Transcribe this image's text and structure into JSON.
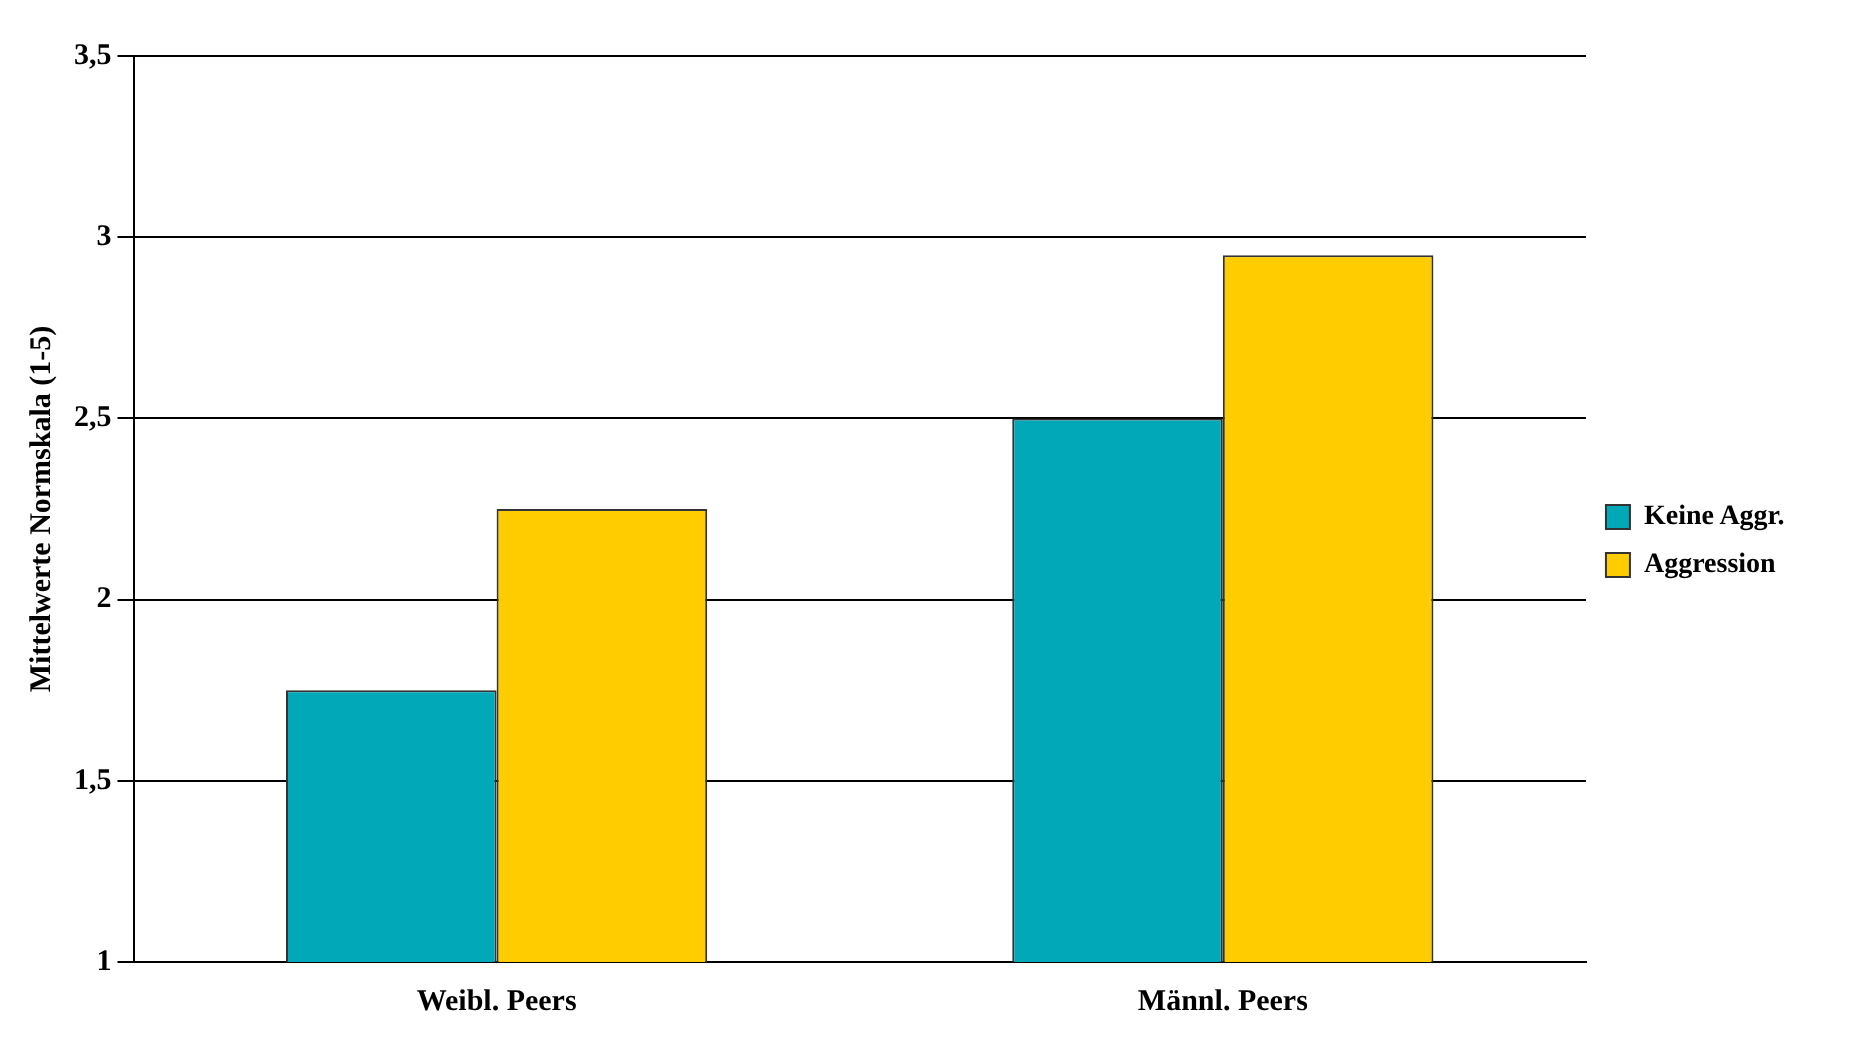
{
  "chart_data": {
    "type": "bar",
    "ylabel": "Mittelwerte Normskala (1-5)",
    "categories": [
      "Weibl. Peers",
      "Männl. Peers"
    ],
    "series": [
      {
        "name": "Keine Aggr.",
        "color": "#00a8b8",
        "values": [
          1.75,
          2.5
        ]
      },
      {
        "name": "Aggression",
        "color": "#ffcc00",
        "values": [
          2.25,
          2.95
        ]
      }
    ],
    "ylim": [
      1,
      3.5
    ],
    "yticks": [
      {
        "value": 1,
        "label": "1"
      },
      {
        "value": 1.5,
        "label": "1,5"
      },
      {
        "value": 2,
        "label": "2"
      },
      {
        "value": 2.5,
        "label": "2,5"
      },
      {
        "value": 3,
        "label": "3"
      },
      {
        "value": 3.5,
        "label": "3,5"
      }
    ],
    "grid": "y",
    "legend": "right"
  }
}
